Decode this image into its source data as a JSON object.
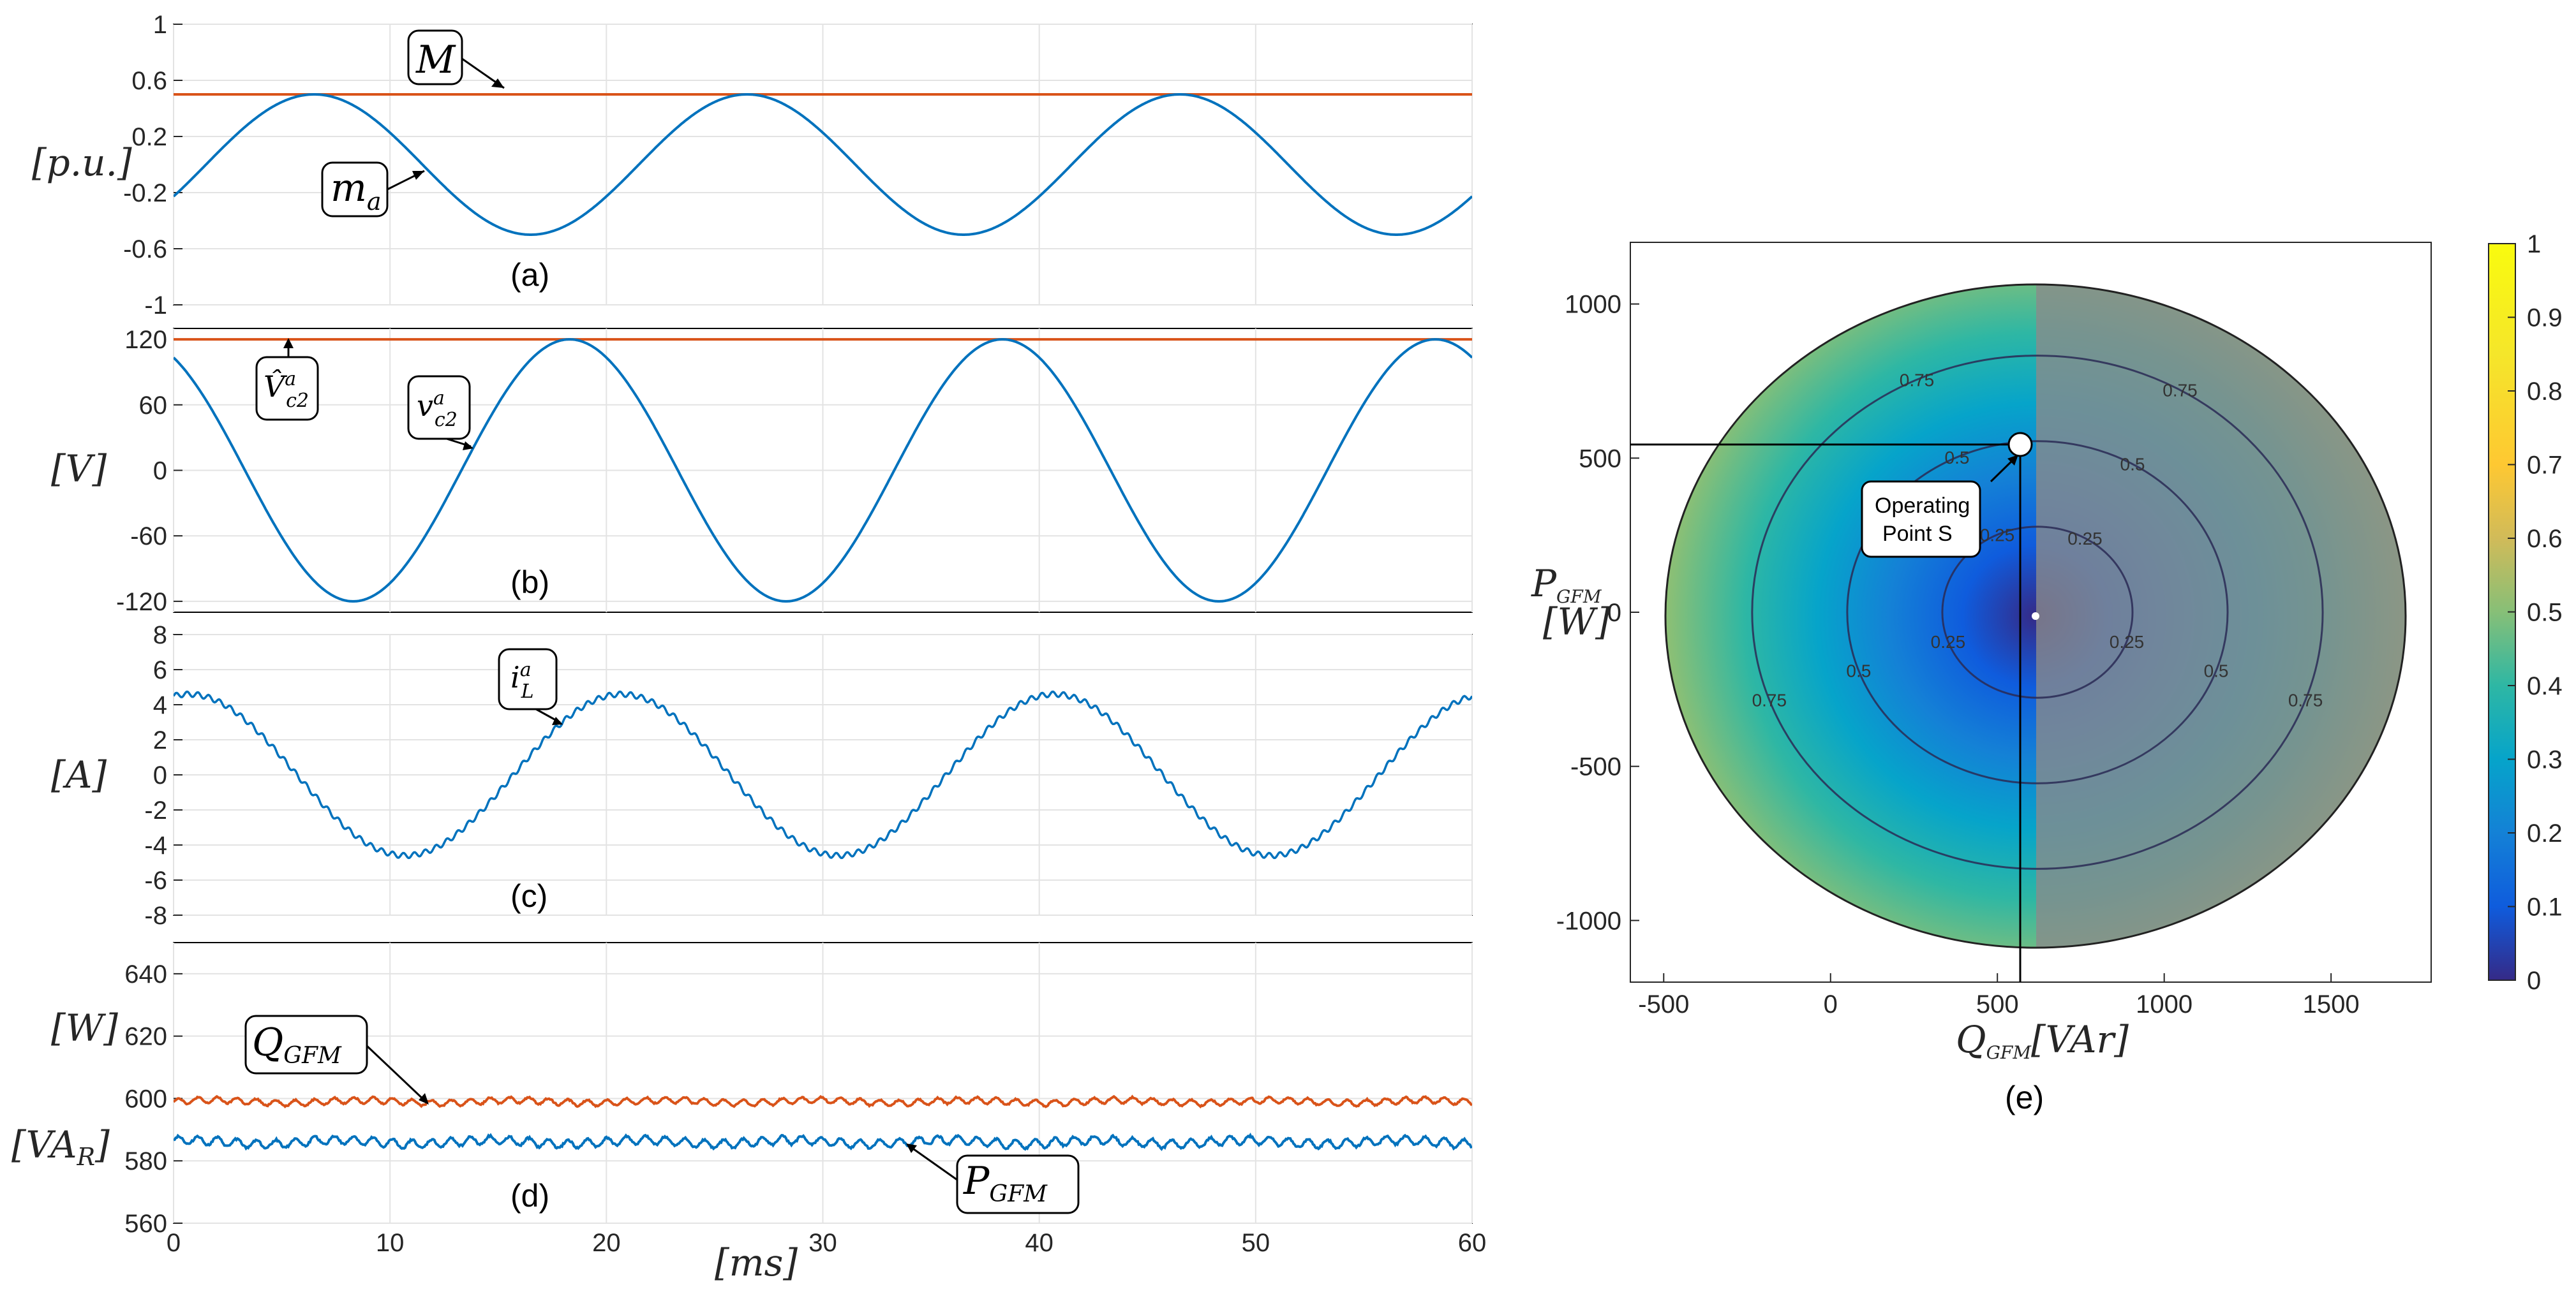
{
  "chart_data": [
    {
      "id": "a",
      "type": "line",
      "panel_label": "(a)",
      "ylabel": "[p.u.]",
      "xlim": [
        0,
        60
      ],
      "ylim": [
        -1,
        1
      ],
      "yticks": [
        "1",
        "0.6",
        "0.2",
        "-0.2",
        "-0.6",
        "-1"
      ],
      "ytick_values": [
        1,
        0.6,
        0.2,
        -0.2,
        -0.6,
        -1
      ],
      "grid": true,
      "series": [
        {
          "name": "M",
          "color": "#d95319",
          "kind": "constant",
          "value": 0.5
        },
        {
          "name": "m_a",
          "color": "#0072bd",
          "kind": "sine",
          "amplitude": 0.5,
          "period_ms": 20,
          "peak_at_ms": 6.5
        }
      ],
      "annotations": [
        "M",
        "m_a"
      ]
    },
    {
      "id": "b",
      "type": "line",
      "panel_label": "(b)",
      "ylabel": "[V]",
      "xlim": [
        0,
        60
      ],
      "ylim": [
        -130,
        130
      ],
      "yticks": [
        "120",
        "60",
        "0",
        "-60",
        "-120"
      ],
      "ytick_values": [
        120,
        60,
        0,
        -60,
        -120
      ],
      "grid": true,
      "series": [
        {
          "name": "V_c2^a (peak)",
          "color": "#d95319",
          "kind": "constant",
          "value": 120
        },
        {
          "name": "v_c2^a",
          "color": "#0072bd",
          "kind": "sine",
          "amplitude": 120,
          "period_ms": 20,
          "peak_at_ms": 18.3
        }
      ],
      "annotations": [
        "V̂ᵃc2",
        "vᵃc2"
      ]
    },
    {
      "id": "c",
      "type": "line",
      "panel_label": "(c)",
      "ylabel": "[A]",
      "xlim": [
        0,
        60
      ],
      "ylim": [
        -8,
        8
      ],
      "yticks": [
        "8",
        "6",
        "4",
        "2",
        "0",
        "-2",
        "-4",
        "-6",
        "-8"
      ],
      "ytick_values": [
        8,
        6,
        4,
        2,
        0,
        -2,
        -4,
        -6,
        -8
      ],
      "grid": true,
      "series": [
        {
          "name": "i_L^a",
          "color": "#0072bd",
          "kind": "sine_ripple",
          "amplitude": 4.6,
          "period_ms": 20,
          "peak_at_ms": 0.7,
          "ripple": 0.15
        }
      ],
      "annotations": [
        "iᵃL"
      ]
    },
    {
      "id": "d",
      "type": "line",
      "panel_label": "(d)",
      "ylabel_top": "[W]",
      "ylabel_bottom": "[VA_R]",
      "xlim": [
        0,
        60
      ],
      "ylim": [
        560,
        650
      ],
      "yticks": [
        "640",
        "620",
        "600",
        "580",
        "560"
      ],
      "ytick_values": [
        640,
        620,
        600,
        580,
        560
      ],
      "xticks": [
        "0",
        "10",
        "20",
        "30",
        "40",
        "50",
        "60"
      ],
      "xtick_values": [
        0,
        10,
        20,
        30,
        40,
        50,
        60
      ],
      "xlabel": "[ms]",
      "grid": true,
      "series": [
        {
          "name": "Q_GFM",
          "color": "#d95319",
          "kind": "noise",
          "mean": 599,
          "amp": 1.6
        },
        {
          "name": "P_GFM",
          "color": "#0072bd",
          "kind": "noise",
          "mean": 586,
          "amp": 2.2
        }
      ],
      "annotations": [
        "Q_GFM",
        "P_GFM"
      ]
    },
    {
      "id": "e",
      "type": "heatmap",
      "panel_label": "(e)",
      "xlabel": "Q_GFM[VAr]",
      "ylabel": "P_GFM [W]",
      "xlim": [
        -600,
        1800
      ],
      "ylim": [
        -1200,
        1200
      ],
      "xticks": [
        "-500",
        "0",
        "500",
        "1000",
        "1500"
      ],
      "xtick_values": [
        -500,
        0,
        500,
        1000,
        1500
      ],
      "yticks": [
        "1000",
        "500",
        "0",
        "-500",
        "-1000"
      ],
      "ytick_values": [
        1000,
        500,
        0,
        -500,
        -1000
      ],
      "ellipse": {
        "cx": 620,
        "cy": 0,
        "rx": 1140,
        "ry": 1110
      },
      "contour_levels": [
        0.25,
        0.5,
        0.75
      ],
      "shaded_half": "Q >= 620 (gray overlay)",
      "operating_point": {
        "q": 580,
        "p": 570,
        "label_line1": "Operating",
        "label_line2": "Point S"
      },
      "colorbar": {
        "min": 0,
        "max": 1,
        "ticks": [
          "1",
          "0.9",
          "0.8",
          "0.7",
          "0.6",
          "0.5",
          "0.4",
          "0.3",
          "0.2",
          "0.1",
          "0"
        ],
        "colormap": "parula"
      }
    }
  ]
}
